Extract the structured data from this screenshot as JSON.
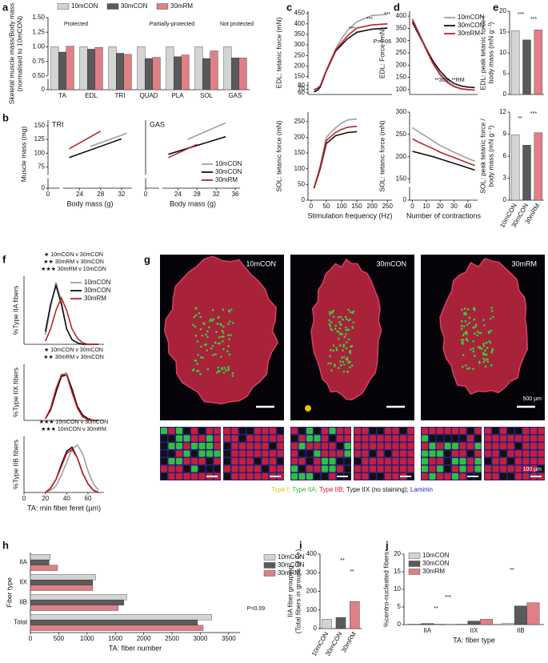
{
  "chart_data": [
    {
      "type": "bar",
      "panel": "a",
      "ylabel": [
        "Skeletal muscle mass/Body mass",
        "(normalised to 10mCON)"
      ],
      "categories": [
        "TA",
        "EDL",
        "TRI",
        "QUAD",
        "PLA",
        "SOL",
        "GAS"
      ],
      "series": [
        {
          "name": "10mCON",
          "color": "#d4d4d4",
          "values": [
            1.0,
            1.0,
            1.0,
            1.0,
            1.0,
            1.0,
            1.0
          ]
        },
        {
          "name": "30mCON",
          "color": "#5a5a5a",
          "values": [
            0.91,
            0.96,
            0.89,
            0.8,
            0.83,
            0.8,
            0.81
          ]
        },
        {
          "name": "30mRM",
          "color": "#e07f86",
          "values": [
            1.01,
            0.99,
            0.87,
            0.82,
            0.86,
            0.93,
            0.81
          ]
        }
      ],
      "ylim": [
        0,
        1.5
      ],
      "ybreak": [
        0,
        0.5
      ],
      "yticks": [
        0,
        {
          "value": 0.5,
          "label": "0.50"
        },
        {
          "value": 0.75,
          "label": "0.75"
        },
        {
          "value": 1,
          "label": "1.00"
        },
        {
          "value": 1.25,
          "label": "1.25"
        },
        {
          "value": 1.5,
          "label": "1.50"
        }
      ],
      "legend": "top",
      "annotations": [
        "Protected",
        "Partially-protected",
        "Not protected"
      ]
    },
    {
      "type": "line",
      "panel": "b",
      "title": "TRI",
      "ylabel": "Muscle mass (mg)",
      "xlabel": "Body mass (g)",
      "series": [
        {
          "name": "10mCON",
          "color": "#a0a0a0",
          "x": [
            26,
            33
          ],
          "values": [
            112,
            136
          ]
        },
        {
          "name": "30mCON",
          "color": "#111111",
          "x": [
            22,
            32
          ],
          "values": [
            92,
            126
          ]
        },
        {
          "name": "30mRM",
          "color": "#c0202a",
          "x": [
            22,
            28
          ],
          "values": [
            108,
            140
          ]
        }
      ],
      "xlim": [
        0,
        34
      ],
      "xbreak": [
        0,
        21
      ],
      "xticks": [
        0,
        24,
        28,
        32
      ],
      "ylim": [
        0,
        160
      ],
      "ybreak": [
        0,
        60
      ],
      "yticks": [
        0,
        75,
        100,
        125,
        150
      ]
    },
    {
      "type": "line",
      "title": "GAS",
      "xlabel": "Body mass (g)",
      "series": [
        {
          "name": "10mCON",
          "color": "#a0a0a0",
          "x": [
            26,
            34
          ],
          "values": [
            125,
            155
          ]
        },
        {
          "name": "30mCON",
          "color": "#111111",
          "x": [
            22,
            34
          ],
          "values": [
            98,
            130
          ]
        },
        {
          "name": "30mRM",
          "color": "#c0202a",
          "x": [
            22,
            28
          ],
          "values": [
            92,
            116
          ]
        }
      ],
      "xlim": [
        0,
        37
      ],
      "xbreak": [
        0,
        21
      ],
      "xticks": [
        0,
        24,
        28,
        32,
        36
      ],
      "ylim": [
        0,
        160
      ],
      "ybreak": [
        0,
        60
      ],
      "legend": "lower right"
    },
    {
      "type": "line",
      "panel": "c",
      "ylabel": "EDL: tetanic force (mN)",
      "x": [
        10,
        20,
        30,
        50,
        80,
        100,
        120,
        150,
        200,
        250
      ],
      "series": [
        {
          "name": "10mCON",
          "color": "#a0a0a0",
          "values": [
            65,
            70,
            80,
            180,
            280,
            330,
            370,
            410,
            440,
            445
          ]
        },
        {
          "name": "30mCON",
          "color": "#111111",
          "values": [
            62,
            66,
            75,
            175,
            270,
            300,
            330,
            360,
            375,
            380
          ]
        },
        {
          "name": "30mRM",
          "color": "#c0202a",
          "values": [
            68,
            72,
            78,
            178,
            275,
            310,
            345,
            380,
            395,
            400
          ]
        }
      ],
      "xlim": [
        -10,
        265
      ],
      "ylim": [
        55,
        460
      ],
      "ybreak": [
        85,
        140
      ],
      "yticks": [
        60,
        70,
        80,
        150,
        200,
        250,
        300,
        350,
        400,
        450
      ],
      "annotations": [
        "***",
        "***",
        "***",
        "P=0.06"
      ]
    },
    {
      "type": "line",
      "ylabel": "SOL: tetanic force (mN)",
      "xlabel": "Stimulation frequency (Hz)",
      "x": [
        10,
        30,
        50,
        80,
        100,
        120,
        150
      ],
      "series": [
        {
          "name": "10mCON",
          "color": "#a0a0a0",
          "values": [
            40,
            110,
            200,
            230,
            245,
            255,
            258
          ]
        },
        {
          "name": "30mCON",
          "color": "#111111",
          "values": [
            38,
            100,
            180,
            205,
            210,
            215,
            218
          ]
        },
        {
          "name": "30mRM",
          "color": "#c0202a",
          "values": [
            40,
            105,
            190,
            215,
            225,
            232,
            235
          ]
        }
      ],
      "xlim": [
        -10,
        265
      ],
      "xticks": [
        0,
        50,
        100,
        150,
        200,
        250
      ],
      "ylim": [
        0,
        280
      ],
      "yticks": [
        0,
        50,
        100,
        150,
        200,
        250
      ]
    },
    {
      "type": "line",
      "panel": "d",
      "ylabel": "EDL: Force (mN)",
      "x": [
        0,
        5,
        10,
        15,
        20,
        25,
        30,
        35,
        40,
        45
      ],
      "series": [
        {
          "name": "10mCON",
          "color": "#a0a0a0",
          "values": [
            390,
            330,
            270,
            210,
            165,
            135,
            115,
            105,
            100,
            98
          ]
        },
        {
          "name": "30mCON",
          "color": "#111111",
          "values": [
            375,
            320,
            265,
            215,
            175,
            145,
            125,
            115,
            110,
            108
          ]
        },
        {
          "name": "30mRM",
          "color": "#c0202a",
          "values": [
            385,
            325,
            262,
            205,
            160,
            130,
            112,
            103,
            100,
            98
          ]
        }
      ],
      "xlim": [
        -2,
        47
      ],
      "ylim": [
        80,
        420
      ],
      "yticks": [
        100,
        150,
        200,
        250,
        300,
        350,
        400
      ],
      "legend": "upper right",
      "annotations": [
        "**30m **RM"
      ]
    },
    {
      "type": "line",
      "ylabel": "SOL: tetanic force (mN)",
      "xlabel": "Number of contractions",
      "x": [
        0,
        5,
        10,
        15,
        20,
        25,
        30,
        35,
        40,
        45
      ],
      "series": [
        {
          "name": "10mCON",
          "color": "#a0a0a0",
          "values": [
            265,
            255,
            245,
            235,
            225,
            218,
            210,
            203,
            196,
            190
          ]
        },
        {
          "name": "30mCON",
          "color": "#111111",
          "values": [
            212,
            208,
            204,
            200,
            195,
            190,
            185,
            180,
            175,
            170
          ]
        },
        {
          "name": "30mRM",
          "color": "#c0202a",
          "values": [
            240,
            232,
            225,
            218,
            210,
            204,
            198,
            192,
            186,
            180
          ]
        }
      ],
      "xlim": [
        -2,
        47
      ],
      "xticks": [
        0,
        10,
        20,
        30,
        40
      ],
      "ylim": [
        0,
        300
      ],
      "ybreak": [
        0,
        140
      ],
      "yticks": [
        0,
        150,
        200,
        250,
        300
      ]
    },
    {
      "type": "bar",
      "panel": "e",
      "ylabel": [
        "EDL: peak tetanic force /",
        "body mass (mN g⁻¹)"
      ],
      "values": [
        15.3,
        13.1,
        15.5
      ],
      "colors": [
        "#d4d4d4",
        "#5a5a5a",
        "#e07f86"
      ],
      "ylim": [
        0,
        20
      ],
      "yticks": [
        0,
        5,
        10,
        15,
        20
      ],
      "annotations": [
        "***",
        "***"
      ]
    },
    {
      "type": "bar",
      "ylabel": [
        "SOL: peak tetanic force /",
        "body mass (mN g⁻¹)"
      ],
      "categories": [
        "10mCON",
        "30mCON",
        "30mRM"
      ],
      "values": [
        8.9,
        7.5,
        9.2
      ],
      "colors": [
        "#d4d4d4",
        "#5a5a5a",
        "#e07f86"
      ],
      "ylim": [
        0,
        12
      ],
      "yticks": [
        0,
        3,
        6,
        9,
        12
      ],
      "annotations": [
        "**",
        "***"
      ]
    },
    {
      "type": "line",
      "panel": "f",
      "ylabel": "%Type IIA fibers",
      "x": [
        20,
        25,
        30,
        35,
        40,
        45,
        50,
        55,
        60,
        65,
        70
      ],
      "series": [
        {
          "name": "10mCON",
          "color": "#a0a0a0",
          "values": [
            3,
            12,
            20,
            14,
            5,
            1.5,
            0.5,
            0,
            0,
            0,
            0
          ]
        },
        {
          "name": "30mCON",
          "color": "#111111",
          "values": [
            4,
            13,
            19,
            13,
            5,
            1.5,
            0.5,
            0,
            0,
            0,
            0
          ]
        },
        {
          "name": "30mRM",
          "color": "#c0202a",
          "values": [
            1,
            5,
            11,
            15,
            11,
            5,
            2,
            0.5,
            0,
            0,
            0
          ]
        }
      ],
      "xlim": [
        0,
        75
      ],
      "ylim": [
        0,
        22
      ],
      "legend": "upper right",
      "annotations": [
        "★ 10mCON v 30mCON",
        "★★ 30mRM v 30mCON",
        "★★★ 30mRM v 10mCON"
      ]
    },
    {
      "type": "line",
      "ylabel": "%Type IIX fibers",
      "x": [
        20,
        25,
        30,
        35,
        40,
        45,
        50,
        55,
        60,
        65,
        70
      ],
      "series": [
        {
          "name": "10mCON",
          "color": "#a0a0a0",
          "values": [
            0.5,
            3,
            8,
            13,
            13.5,
            9,
            4,
            1.5,
            0.5,
            0,
            0
          ]
        },
        {
          "name": "30mCON",
          "color": "#111111",
          "values": [
            0.5,
            3,
            8,
            12.5,
            13,
            9,
            4,
            1.5,
            0.5,
            0,
            0
          ]
        },
        {
          "name": "30mRM",
          "color": "#c0202a",
          "values": [
            0.5,
            3.5,
            9,
            13,
            13,
            8,
            3.5,
            1,
            0.3,
            0,
            0
          ]
        }
      ],
      "xlim": [
        0,
        75
      ],
      "ylim": [
        0,
        16
      ],
      "annotations": [
        "★ 10mCON v 30mCON",
        "★★ 30mRM v 30mCON"
      ]
    },
    {
      "type": "line",
      "ylabel": "%Type IIB fibers",
      "xlabel": "TA: min fiber feret (µm)",
      "x": [
        20,
        25,
        30,
        35,
        40,
        45,
        50,
        55,
        60,
        65,
        70
      ],
      "series": [
        {
          "name": "10mCON",
          "color": "#a0a0a0",
          "values": [
            0,
            0.5,
            1.5,
            4,
            7,
            10,
            11,
            9,
            5,
            2,
            0.5
          ]
        },
        {
          "name": "30mCON",
          "color": "#111111",
          "values": [
            0,
            1,
            3,
            6.5,
            9.5,
            10.5,
            8,
            4.5,
            2,
            0.5,
            0
          ]
        },
        {
          "name": "30mRM",
          "color": "#c0202a",
          "values": [
            0,
            1,
            3,
            6,
            9,
            10,
            8,
            4.5,
            2,
            0.5,
            0
          ]
        }
      ],
      "xlim": [
        0,
        75
      ],
      "xticks": [
        0,
        20,
        40,
        60
      ],
      "ylim": [
        0,
        13
      ],
      "annotations": [
        "★★★ 10mCON v 30mCON",
        "★★★ 10mCON v 30mRM"
      ]
    },
    {
      "type": "image",
      "panel": "g",
      "labels": [
        "10mCON",
        "30mCON",
        "30mRM"
      ],
      "scale_bars": [
        "500 µm",
        "100 µm"
      ],
      "legend": [
        {
          "label": "Type I;",
          "color": "#e8c000"
        },
        {
          "label": "Type IIA;",
          "color": "#2eb82e"
        },
        {
          "label": "Type IIB;",
          "color": "#d01020"
        },
        {
          "label": "Type IIX (no staining);",
          "color": "#111111"
        },
        {
          "label": "Laminin",
          "color": "#2020c0"
        }
      ]
    },
    {
      "type": "barh",
      "panel": "h",
      "ylabel": "Fiber type",
      "xlabel": "TA: fiber number",
      "categories": [
        "IIA",
        "IIX",
        "IIB",
        "Total"
      ],
      "series": [
        {
          "name": "10mCON",
          "color": "#d4d4d4",
          "values": [
            350,
            1150,
            1700,
            3200
          ]
        },
        {
          "name": "30mCON",
          "color": "#5a5a5a",
          "values": [
            330,
            1100,
            1650,
            2950
          ]
        },
        {
          "name": "30mRM",
          "color": "#e07f86",
          "values": [
            480,
            1100,
            1550,
            3050
          ]
        }
      ],
      "xlim": [
        0,
        3700
      ],
      "xticks": [
        0,
        500,
        1000,
        1500,
        2000,
        2500,
        3000,
        3500
      ],
      "legend": "right",
      "annotations": [
        "P=0.09"
      ]
    },
    {
      "type": "bar",
      "panel": "i",
      "ylabel": [
        "IIA fiber grouping",
        "(Total fibers in groups of 4+)"
      ],
      "categories": [
        "10mCON",
        "30mCON",
        "30mRM"
      ],
      "values": [
        50,
        60,
        145
      ],
      "colors": [
        "#d4d4d4",
        "#5a5a5a",
        "#e07f86"
      ],
      "ylim": [
        0,
        400
      ],
      "yticks": [
        0,
        100,
        200,
        300,
        400
      ],
      "annotations": [
        "**",
        "**"
      ]
    },
    {
      "type": "bar",
      "panel": "j",
      "ylabel": "%centro-nucleated fibers",
      "xlabel": "TA: fiber type",
      "categories": [
        "IIA",
        "IIX",
        "IIB"
      ],
      "series": [
        {
          "name": "10mCON",
          "color": "#d4d4d4",
          "values": [
            0.1,
            0.1,
            0.3
          ]
        },
        {
          "name": "30mCON",
          "color": "#5a5a5a",
          "values": [
            0.3,
            1.0,
            5.3
          ]
        },
        {
          "name": "30mRM",
          "color": "#e07f86",
          "values": [
            0.1,
            1.5,
            6.2
          ]
        }
      ],
      "ylim": [
        0,
        20
      ],
      "yticks": [
        0,
        5,
        10,
        15,
        20
      ],
      "legend": "upper left",
      "annotations": [
        "**",
        "***",
        "**"
      ]
    }
  ]
}
